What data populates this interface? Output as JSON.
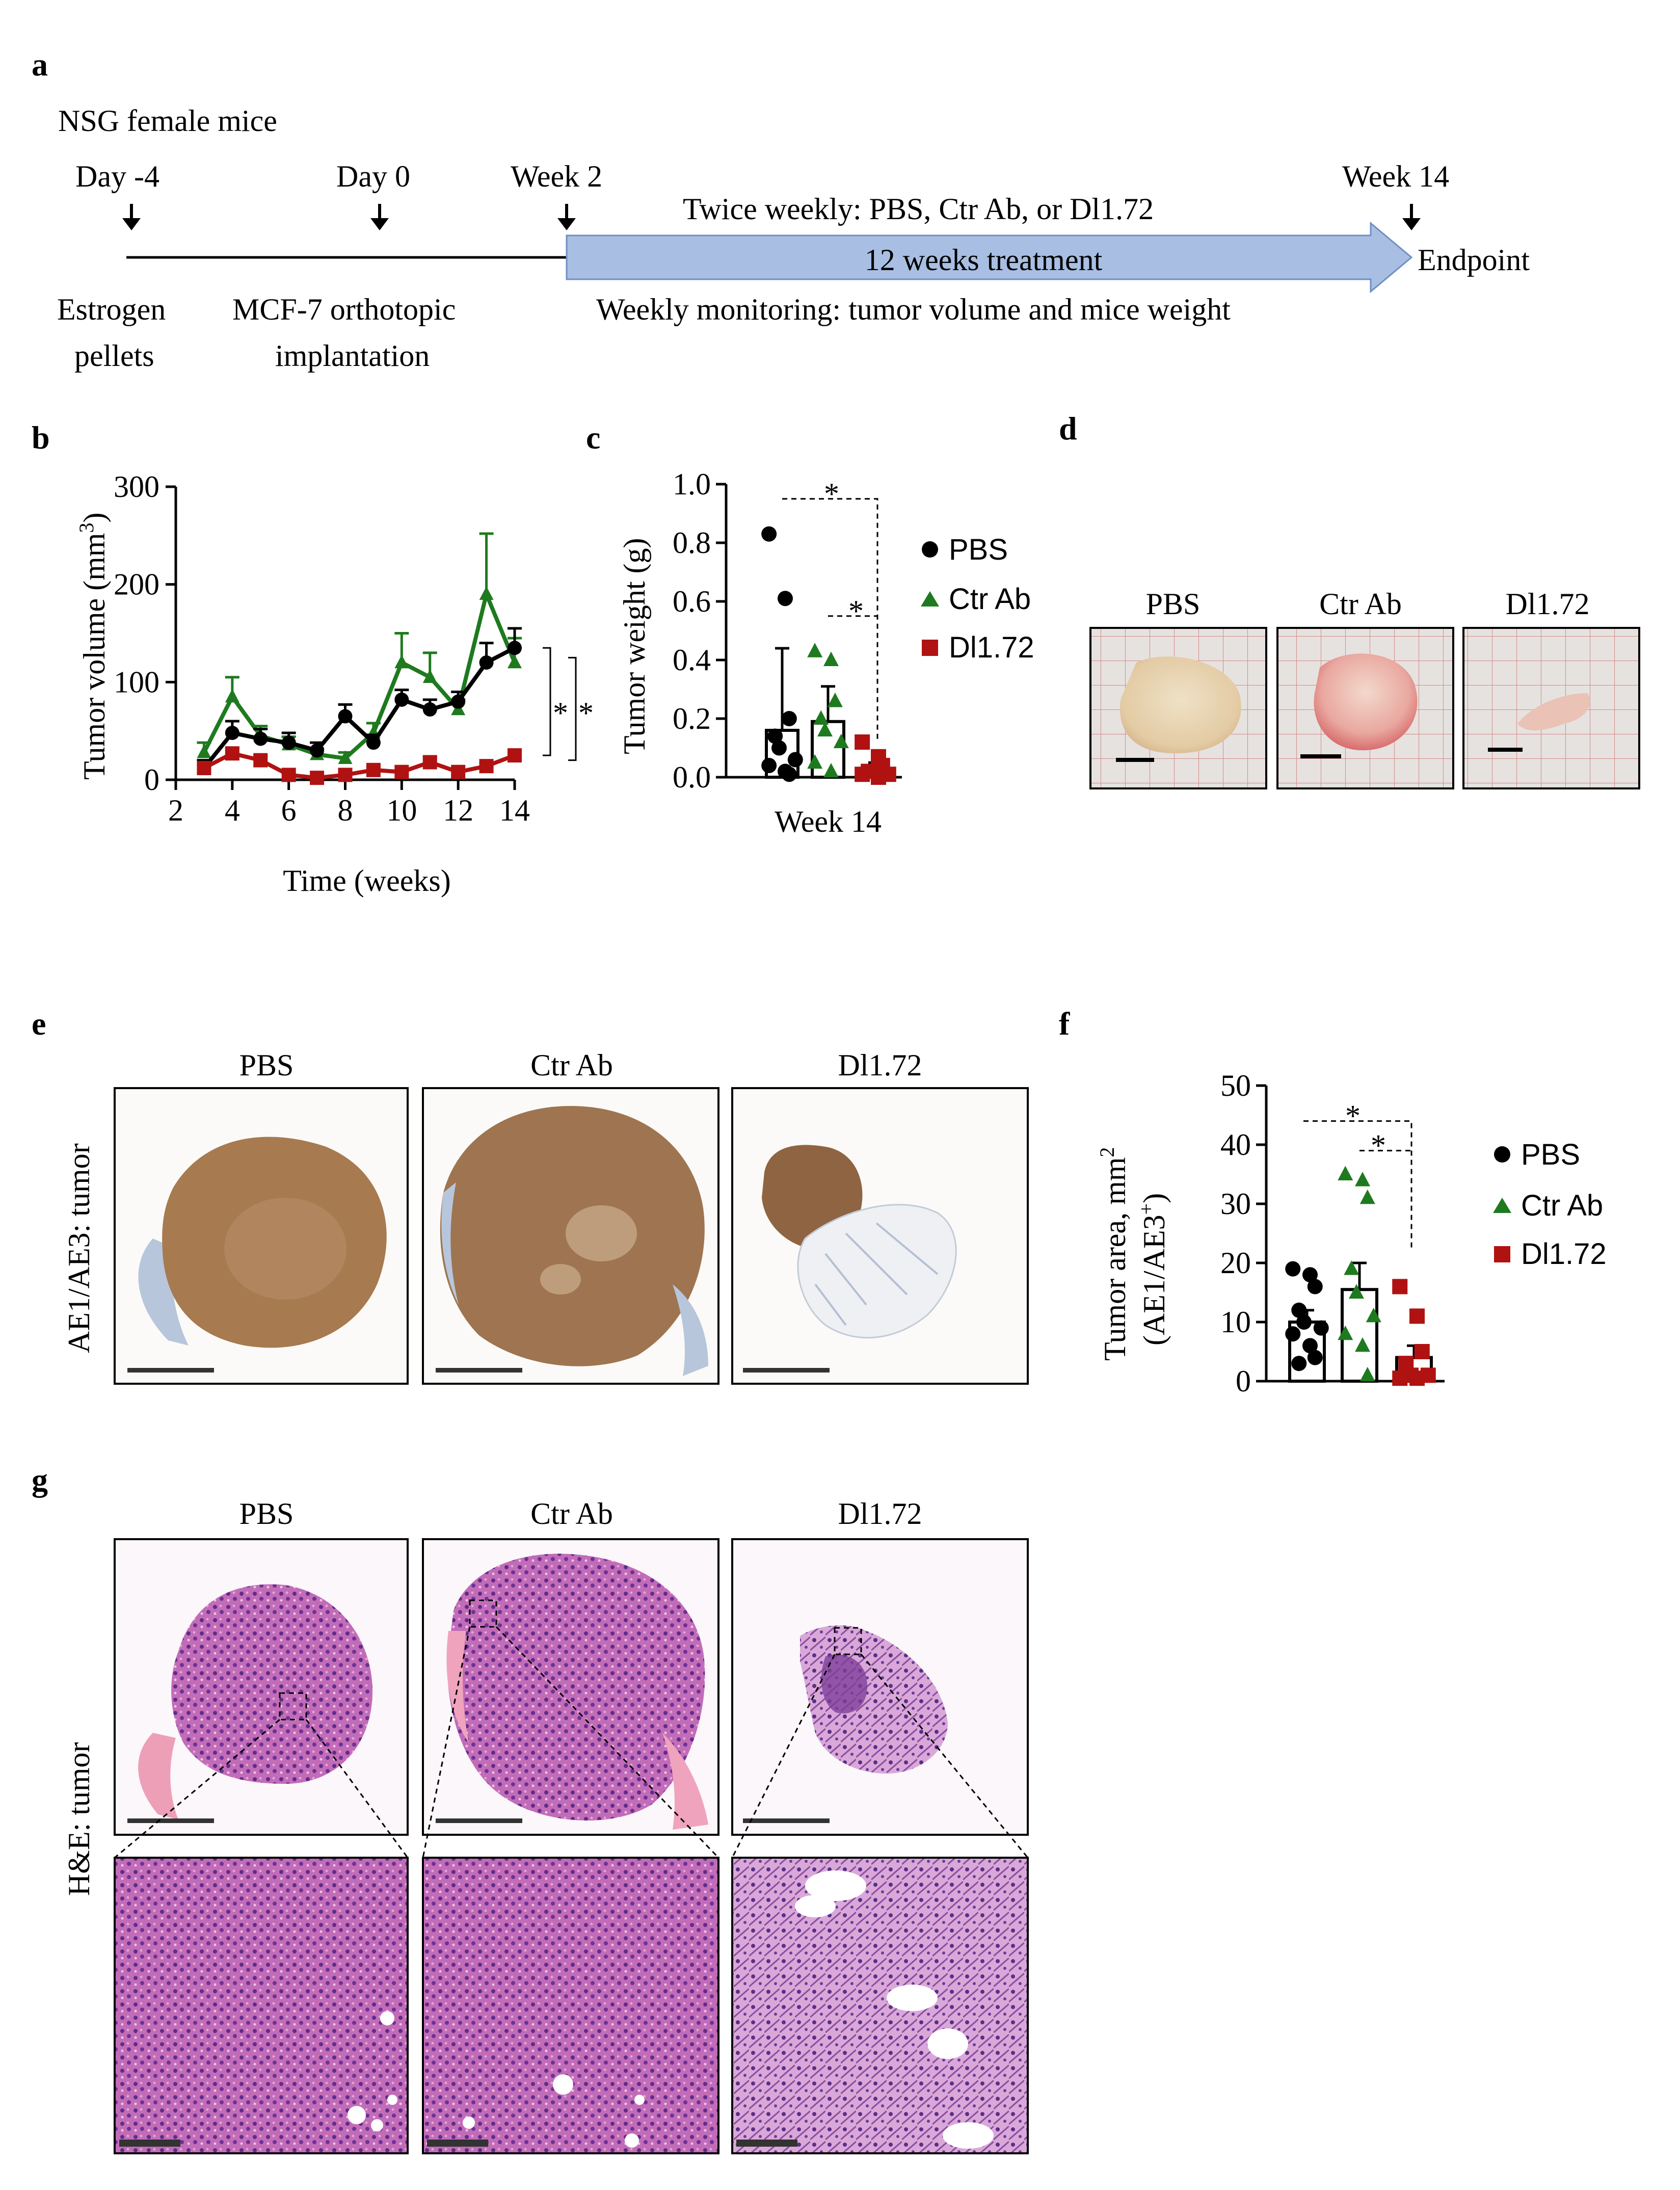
{
  "panels": {
    "a": "a",
    "b": "b",
    "c": "c",
    "d": "d",
    "e": "e",
    "f": "f",
    "g": "g"
  },
  "timeline": {
    "mice": "NSG female mice",
    "day_m4": "Day -4",
    "day_0": "Day 0",
    "week_2": "Week 2",
    "week_14": "Week 14",
    "twice_weekly": "Twice weekly: PBS, Ctr Ab, or Dl1.72",
    "treatment": "12 weeks treatment",
    "endpoint": "Endpoint",
    "estrogen_1": "Estrogen",
    "estrogen_2": "pellets",
    "mcf7_1": "MCF-7 orthotopic",
    "mcf7_2": "implantation",
    "monitoring": "Weekly monitoring: tumor volume and mice weight",
    "arrow_color": "#a8bfe3"
  },
  "colors": {
    "pbs": "#000000",
    "ctr": "#1e7a1e",
    "dl": "#b01212"
  },
  "groups": [
    "PBS",
    "Ctr Ab",
    "Dl1.72"
  ],
  "sig": "*",
  "chart_data": [
    {
      "panel": "b",
      "type": "line",
      "ylabel": "Tumor volume (mm",
      "ylabel_sup": "3",
      "ylabel_end": ")",
      "xlabel": "Time (weeks)",
      "ylim": [
        0,
        300
      ],
      "xlim": [
        2,
        14
      ],
      "yticks": [
        "0",
        "100",
        "200",
        "300"
      ],
      "xticks": [
        "2",
        "4",
        "6",
        "8",
        "10",
        "12",
        "14"
      ],
      "x": [
        3,
        4,
        5,
        6,
        7,
        8,
        9,
        10,
        11,
        12,
        13,
        14
      ],
      "series": [
        {
          "name": "PBS",
          "values": [
            12,
            48,
            42,
            38,
            30,
            65,
            38,
            82,
            72,
            80,
            120,
            135
          ],
          "err": [
            8,
            12,
            10,
            10,
            8,
            12,
            8,
            10,
            10,
            10,
            20,
            20
          ]
        },
        {
          "name": "Ctr Ab",
          "values": [
            28,
            85,
            45,
            36,
            26,
            22,
            48,
            120,
            105,
            72,
            190,
            120
          ],
          "err": [
            10,
            20,
            10,
            8,
            6,
            6,
            10,
            30,
            25,
            10,
            62,
            25
          ]
        },
        {
          "name": "Dl1.72",
          "values": [
            12,
            27,
            20,
            5,
            2,
            5,
            10,
            8,
            18,
            8,
            14,
            25
          ],
          "err": [
            3,
            5,
            4,
            2,
            1,
            2,
            3,
            2,
            5,
            2,
            3,
            4
          ]
        }
      ],
      "sig": [
        "*",
        "*"
      ]
    },
    {
      "panel": "c",
      "type": "scatter",
      "ylabel": "Tumor weight (g)",
      "xlabel": "Week 14",
      "ylim": [
        0,
        1.0
      ],
      "yticks": [
        "0.0",
        "0.2",
        "0.4",
        "0.6",
        "0.8",
        "1.0"
      ],
      "series": [
        {
          "name": "PBS",
          "mean": 0.16,
          "err": 0.28,
          "points": [
            0.83,
            0.61,
            0.2,
            0.14,
            0.1,
            0.06,
            0.04,
            0.02,
            0.01
          ]
        },
        {
          "name": "Ctr Ab",
          "mean": 0.19,
          "err": 0.12,
          "points": [
            0.43,
            0.4,
            0.26,
            0.2,
            0.16,
            0.12,
            0.05,
            0.02
          ]
        },
        {
          "name": "Dl1.72",
          "mean": 0.03,
          "err": 0.02,
          "points": [
            0.12,
            0.07,
            0.04,
            0.02,
            0.02,
            0.01,
            0.01,
            0.0
          ]
        }
      ],
      "sig": [
        "*",
        "*"
      ]
    },
    {
      "panel": "f",
      "type": "scatter",
      "ylabel_1": "Tumor area, mm",
      "ylabel_1_sup": "2",
      "ylabel_2": "(AE1/AE3",
      "ylabel_2_sup": "+",
      "ylabel_2_end": ")",
      "ylim": [
        0,
        50
      ],
      "yticks": [
        "0",
        "10",
        "20",
        "30",
        "40",
        "50"
      ],
      "series": [
        {
          "name": "PBS",
          "mean": 10,
          "err": 2,
          "points": [
            19,
            18,
            16,
            12,
            10,
            9,
            8,
            6,
            4,
            3
          ]
        },
        {
          "name": "Ctr Ab",
          "mean": 15.5,
          "err": 4.5,
          "points": [
            35,
            34,
            31,
            19,
            15,
            11,
            8,
            6,
            1
          ]
        },
        {
          "name": "Dl1.72",
          "mean": 4,
          "err": 2,
          "points": [
            16,
            11,
            5,
            3,
            1,
            1,
            0.5,
            0.5
          ]
        }
      ],
      "sig": [
        "*",
        "*"
      ]
    }
  ],
  "photos": {
    "d": [
      "PBS",
      "Ctr Ab",
      "Dl1.72"
    ],
    "e": [
      "PBS",
      "Ctr Ab",
      "Dl1.72"
    ],
    "g": [
      "PBS",
      "Ctr Ab",
      "Dl1.72"
    ],
    "e_side": "AE1/AE3: tumor",
    "g_side": "H&E: tumor"
  }
}
